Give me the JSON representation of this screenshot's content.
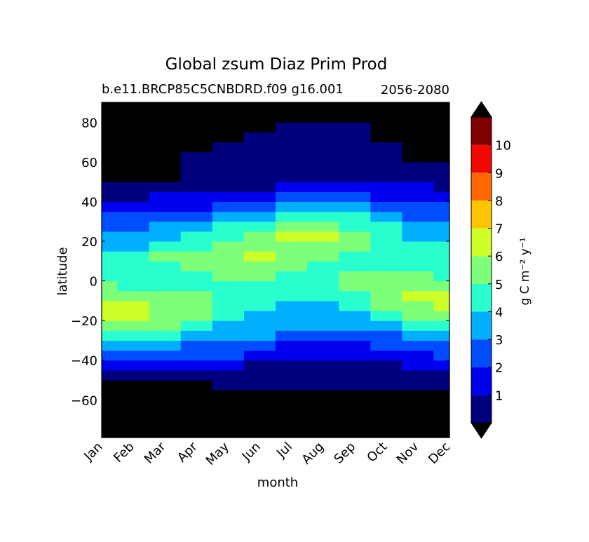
{
  "chart_data": {
    "type": "heatmap",
    "title": "Global zsum Diaz Prim Prod",
    "subtitle_left": "b.e11.BRCP85C5CNBDRD.f09 g16.001",
    "subtitle_right": "2056-2080",
    "xlabel": "month",
    "ylabel": "latitude",
    "x_tick_labels": [
      "Jan",
      "Feb",
      "Mar",
      "Apr",
      "May",
      "Jun",
      "Jul",
      "Aug",
      "Sep",
      "Oct",
      "Nov",
      "Dec"
    ],
    "y_ticks": [
      80,
      60,
      40,
      20,
      0,
      -20,
      -40,
      -60
    ],
    "y_tick_labels": [
      "80",
      "60",
      "40",
      "20",
      "0",
      "−20",
      "−40",
      "−60"
    ],
    "ylim": [
      -79,
      90
    ],
    "xlim": [
      1,
      12
    ],
    "colorbar": {
      "label": "g C m⁻² y⁻¹",
      "levels": [
        0,
        1,
        2,
        3,
        4,
        5,
        6,
        7,
        8,
        9,
        10,
        11
      ],
      "tick_labels": [
        "1",
        "2",
        "3",
        "4",
        "5",
        "6",
        "7",
        "8",
        "9",
        "10"
      ],
      "colors": [
        "#00007f",
        "#0000f1",
        "#004cff",
        "#00b0ff",
        "#29ffce",
        "#7dff7a",
        "#ceff29",
        "#ffc400",
        "#ff6800",
        "#f10800",
        "#7f0000"
      ],
      "extend": "both",
      "under_color": "#000000",
      "over_color": "#000000"
    },
    "missing_color": "#000000",
    "lat_edges": [
      -79,
      -70,
      -60,
      -55,
      -50,
      -45,
      -40,
      -35,
      -30,
      -25,
      -20,
      -15,
      -10,
      -5,
      0,
      5,
      10,
      15,
      20,
      25,
      30,
      35,
      40,
      45,
      50,
      55,
      60,
      65,
      70,
      75,
      80,
      90
    ],
    "month_centers": [
      "Jan",
      "Feb",
      "Mar",
      "Apr",
      "May",
      "Jun",
      "Jul",
      "Aug",
      "Sep",
      "Oct",
      "Nov",
      "Dec"
    ],
    "values_by_month": [
      [
        -1,
        -1,
        -1,
        -1,
        0.5,
        1.5,
        2.5,
        3.5,
        4.5,
        5.5,
        6.5,
        6.5,
        5.5,
        5.5,
        4.5,
        4.5,
        4.5,
        3.5,
        3.5,
        2.5,
        2.5,
        1.5,
        0.5,
        0.5,
        -1,
        -1,
        -1,
        -1,
        -1,
        -1,
        -1
      ],
      [
        -1,
        -1,
        -1,
        -1,
        0.5,
        1.5,
        2.5,
        3.5,
        4.5,
        5.5,
        6.5,
        6.5,
        5.5,
        4.5,
        4.5,
        4.5,
        4.5,
        3.5,
        3.5,
        2.5,
        2.5,
        1.5,
        0.5,
        0.5,
        -1,
        -1,
        -1,
        -1,
        -1,
        -1,
        -1
      ],
      [
        -1,
        -1,
        -1,
        -1,
        0.5,
        1.5,
        2.5,
        3.5,
        4.5,
        5.5,
        5.5,
        5.5,
        5.5,
        4.5,
        4.5,
        4.5,
        5.5,
        4.5,
        3.5,
        3.5,
        2.5,
        1.5,
        1.5,
        0.5,
        -1,
        -1,
        -1,
        -1,
        -1,
        -1,
        -1
      ],
      [
        -1,
        -1,
        -1,
        -1,
        0.5,
        1.5,
        2.5,
        2.5,
        3.5,
        4.5,
        5.5,
        5.5,
        5.5,
        4.5,
        4.5,
        5.5,
        5.5,
        4.5,
        4.5,
        3.5,
        2.5,
        1.5,
        1.5,
        0.5,
        0.5,
        0.5,
        0.5,
        -1,
        -1,
        -1,
        -1
      ],
      [
        -1,
        -1,
        -1,
        0.5,
        0.5,
        1.5,
        2.5,
        2.5,
        3.5,
        3.5,
        4.5,
        4.5,
        4.5,
        4.5,
        5.5,
        5.5,
        5.5,
        5.5,
        4.5,
        4.5,
        3.5,
        2.5,
        1.5,
        0.5,
        0.5,
        0.5,
        0.5,
        0.5,
        -1,
        -1,
        -1
      ],
      [
        -1,
        -1,
        -1,
        0.5,
        0.5,
        0.5,
        1.5,
        2.5,
        3.5,
        3.5,
        3.5,
        4.5,
        4.5,
        4.5,
        5.5,
        5.5,
        6.5,
        5.5,
        5.5,
        4.5,
        3.5,
        2.5,
        1.5,
        0.5,
        0.5,
        0.5,
        0.5,
        0.5,
        0.5,
        -1,
        -1
      ],
      [
        -1,
        -1,
        -1,
        0.5,
        0.5,
        0.5,
        1.5,
        1.5,
        2.5,
        3.5,
        3.5,
        3.5,
        4.5,
        4.5,
        4.5,
        5.5,
        5.5,
        5.5,
        6.5,
        5.5,
        4.5,
        3.5,
        2.5,
        1.5,
        0.5,
        0.5,
        0.5,
        0.5,
        0.5,
        0.5,
        -1
      ],
      [
        -1,
        -1,
        -1,
        0.5,
        0.5,
        0.5,
        1.5,
        1.5,
        2.5,
        3.5,
        3.5,
        3.5,
        4.5,
        4.5,
        4.5,
        4.5,
        5.5,
        5.5,
        6.5,
        5.5,
        4.5,
        3.5,
        2.5,
        1.5,
        0.5,
        0.5,
        0.5,
        0.5,
        0.5,
        0.5,
        -1
      ],
      [
        -1,
        -1,
        -1,
        0.5,
        0.5,
        0.5,
        1.5,
        1.5,
        2.5,
        3.5,
        3.5,
        4.5,
        4.5,
        5.5,
        5.5,
        4.5,
        4.5,
        5.5,
        5.5,
        4.5,
        4.5,
        3.5,
        2.5,
        1.5,
        0.5,
        0.5,
        0.5,
        0.5,
        0.5,
        0.5,
        -1
      ],
      [
        -1,
        -1,
        -1,
        0.5,
        0.5,
        0.5,
        1.5,
        2.5,
        2.5,
        3.5,
        4.5,
        5.5,
        5.5,
        5.5,
        5.5,
        4.5,
        4.5,
        4.5,
        4.5,
        4.5,
        3.5,
        2.5,
        1.5,
        1.5,
        0.5,
        0.5,
        0.5,
        0.5,
        -1,
        -1,
        -1
      ],
      [
        -1,
        -1,
        -1,
        0.5,
        0.5,
        1.5,
        1.5,
        2.5,
        3.5,
        4.5,
        5.5,
        5.5,
        6.5,
        5.5,
        5.5,
        4.5,
        4.5,
        4.5,
        3.5,
        3.5,
        2.5,
        2.5,
        1.5,
        1.5,
        0.5,
        0.5,
        -1,
        -1,
        -1,
        -1,
        -1
      ],
      [
        -1,
        -1,
        -1,
        0.5,
        0.5,
        1.5,
        2.5,
        2.5,
        3.5,
        4.5,
        5.5,
        6.5,
        6.5,
        5.5,
        4.5,
        4.5,
        4.5,
        4.5,
        3.5,
        3.5,
        2.5,
        2.5,
        1.5,
        0.5,
        0.5,
        0.5,
        -1,
        -1,
        -1,
        -1,
        -1
      ]
    ]
  }
}
